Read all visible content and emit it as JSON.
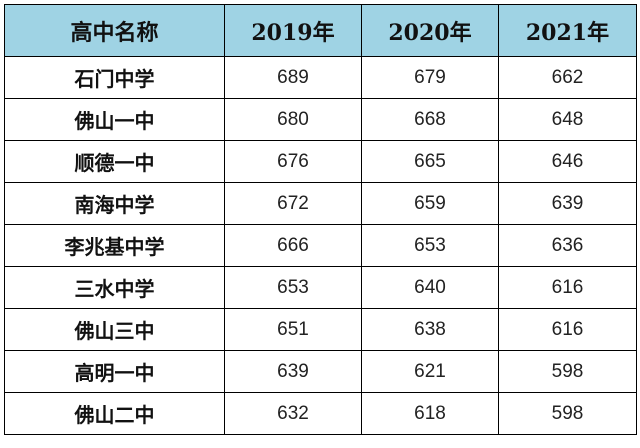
{
  "table": {
    "header": {
      "school": "高中名称",
      "y2019": "2019年",
      "y2020": "2020年",
      "y2021": "2021年"
    },
    "header_bg": "#9fd3e4",
    "rows": [
      {
        "school": "石门中学",
        "y2019": "689",
        "y2020": "679",
        "y2021": "662"
      },
      {
        "school": "佛山一中",
        "y2019": "680",
        "y2020": "668",
        "y2021": "648"
      },
      {
        "school": "顺德一中",
        "y2019": "676",
        "y2020": "665",
        "y2021": "646"
      },
      {
        "school": "南海中学",
        "y2019": "672",
        "y2020": "659",
        "y2021": "639"
      },
      {
        "school": "李兆基中学",
        "y2019": "666",
        "y2020": "653",
        "y2021": "636"
      },
      {
        "school": "三水中学",
        "y2019": "653",
        "y2020": "640",
        "y2021": "616"
      },
      {
        "school": "佛山三中",
        "y2019": "651",
        "y2020": "638",
        "y2021": "616"
      },
      {
        "school": "高明一中",
        "y2019": "639",
        "y2020": "621",
        "y2021": "598"
      },
      {
        "school": "佛山二中",
        "y2019": "632",
        "y2020": "618",
        "y2021": "598"
      }
    ]
  }
}
